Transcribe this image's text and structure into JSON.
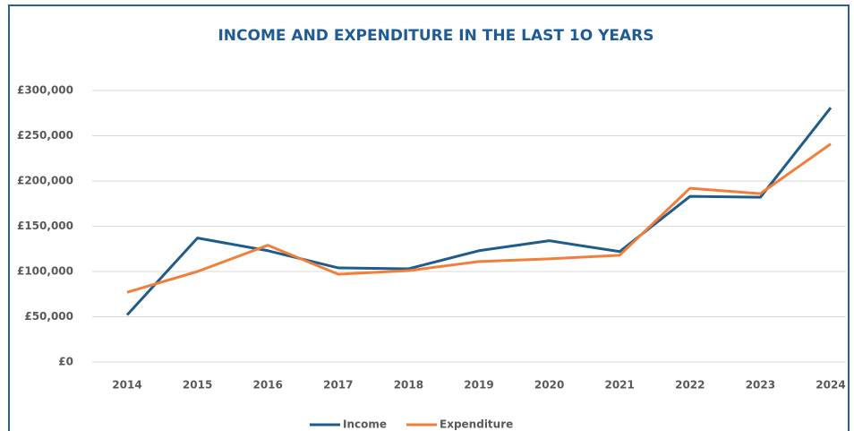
{
  "chart_data": {
    "type": "line",
    "title": "INCOME AND EXPENDITURE IN THE LAST 1O YEARS",
    "categories": [
      "2014",
      "2015",
      "2016",
      "2017",
      "2018",
      "2019",
      "2020",
      "2021",
      "2022",
      "2023",
      "2024"
    ],
    "series": [
      {
        "name": "Income",
        "color": "#1f5c8a",
        "values": [
          52000,
          137000,
          123000,
          104000,
          103000,
          123000,
          134000,
          122000,
          183000,
          182000,
          281000
        ]
      },
      {
        "name": "Expenditure",
        "color": "#f07f3c",
        "values": [
          77000,
          100000,
          129000,
          97000,
          101000,
          111000,
          114000,
          118000,
          192000,
          186000,
          241000
        ]
      }
    ],
    "ylim": [
      0,
      300000
    ],
    "yticks": [
      {
        "value": 0,
        "label": "£0"
      },
      {
        "value": 50000,
        "label": "£50,000"
      },
      {
        "value": 100000,
        "label": "£100,000"
      },
      {
        "value": 150000,
        "label": "£150,000"
      },
      {
        "value": 200000,
        "label": "£200,000"
      },
      {
        "value": 250000,
        "label": "£250,000"
      },
      {
        "value": 300000,
        "label": "£300,000"
      }
    ],
    "grid": true,
    "legend": "bottom"
  }
}
